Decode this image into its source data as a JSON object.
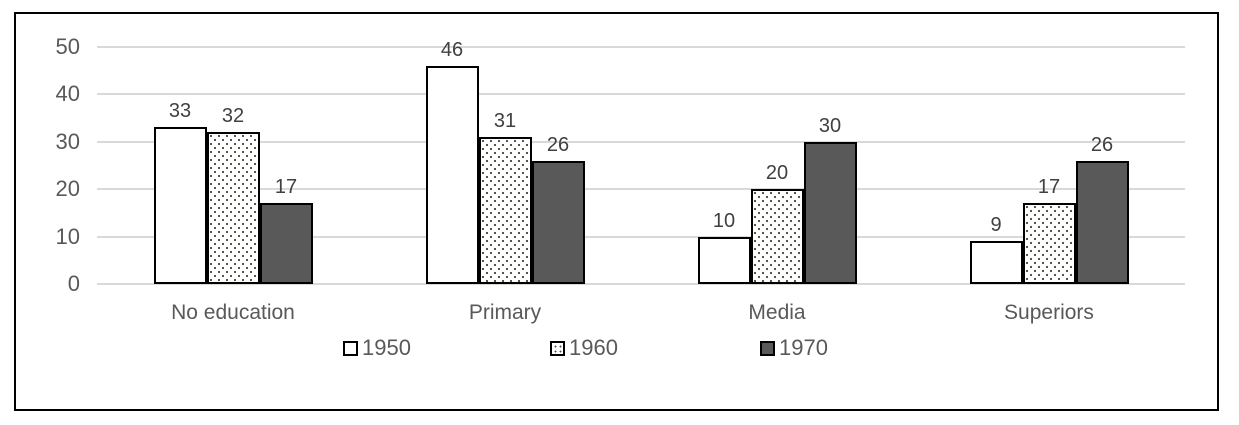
{
  "chart_data": {
    "type": "bar",
    "title": "",
    "xlabel": "",
    "ylabel": "",
    "categories": [
      "No education",
      "Primary",
      "Media",
      "Superiors"
    ],
    "series": [
      {
        "name": "1950",
        "pattern": "plain",
        "values": [
          33,
          46,
          10,
          9
        ]
      },
      {
        "name": "1960",
        "pattern": "dots",
        "values": [
          32,
          31,
          20,
          17
        ]
      },
      {
        "name": "1970",
        "pattern": "solid",
        "values": [
          17,
          26,
          30,
          26
        ]
      }
    ],
    "data_labels_shown": true,
    "y_ticks": [
      0,
      10,
      20,
      30,
      40,
      50
    ],
    "ylim": [
      0,
      50
    ],
    "grid": true,
    "legend_position": "bottom"
  },
  "colors": {
    "background": "#ffffff",
    "frame_border": "#000000",
    "gridline": "#d9d9d9",
    "axis_text": "#595959",
    "value_label_text": "#404040",
    "bar_border": "#000000",
    "series_1950_fill": "#ffffff",
    "series_1960_fill": "#ffffff",
    "series_1960_dot": "#55554a",
    "series_1970_fill": "#595959"
  }
}
